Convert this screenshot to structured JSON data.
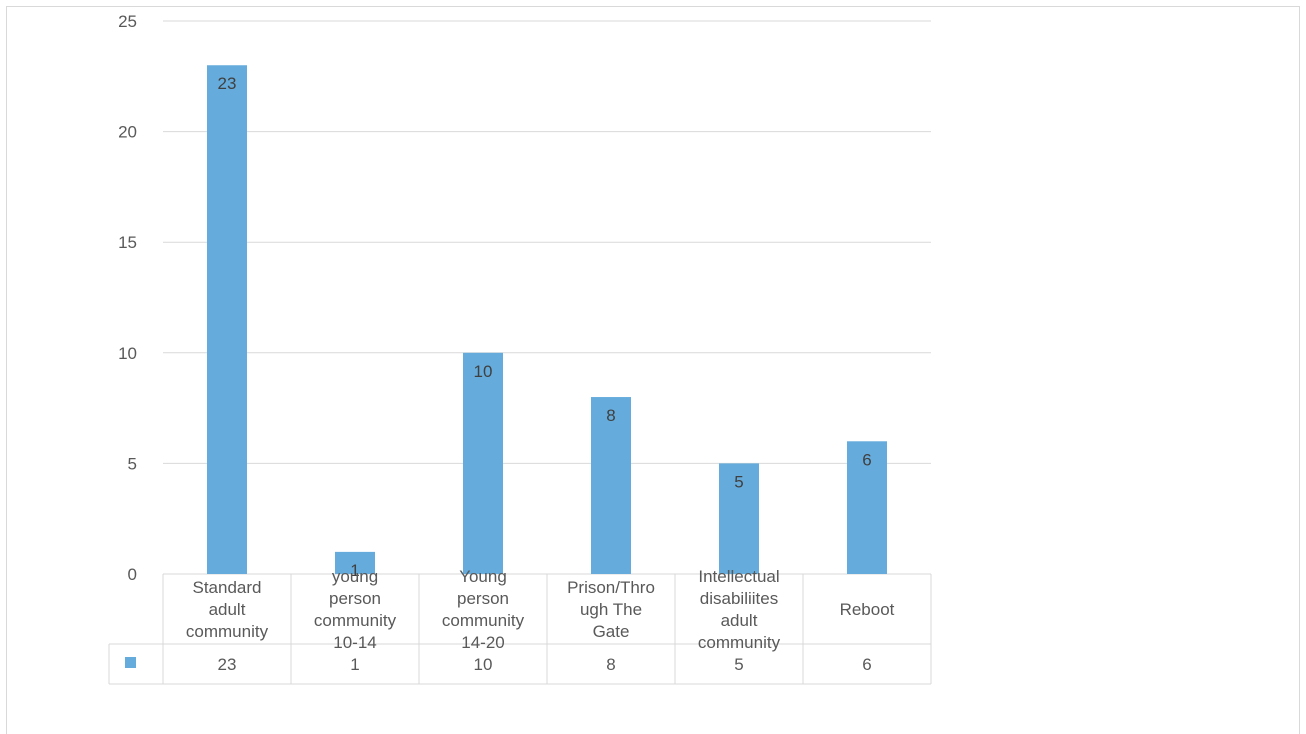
{
  "chart_data": {
    "type": "bar",
    "title": "",
    "xlabel": "",
    "ylabel": "",
    "ylim": [
      0,
      25
    ],
    "yticks": [
      0,
      5,
      10,
      15,
      20,
      25
    ],
    "grid": true,
    "legend": "data-table",
    "categories": [
      [
        "Standard",
        "adult",
        "community"
      ],
      [
        "young",
        "person",
        "community",
        "10-14"
      ],
      [
        "Young",
        "person",
        "community",
        "14-20"
      ],
      [
        "Prison/Thro",
        "ugh The",
        "Gate"
      ],
      [
        "Intellectual",
        "disabiliites",
        "adult",
        "community"
      ],
      [
        "Reboot"
      ]
    ],
    "values": [
      23,
      1,
      10,
      8,
      5,
      6
    ],
    "value_labels": [
      "23",
      "1",
      "10",
      "8",
      "5",
      "6"
    ],
    "table_values": [
      "23",
      "1",
      "10",
      "8",
      "5",
      "6"
    ],
    "colors": {
      "bar": "#65acdc",
      "grid": "#d9d9d9",
      "text": "#595959"
    }
  }
}
